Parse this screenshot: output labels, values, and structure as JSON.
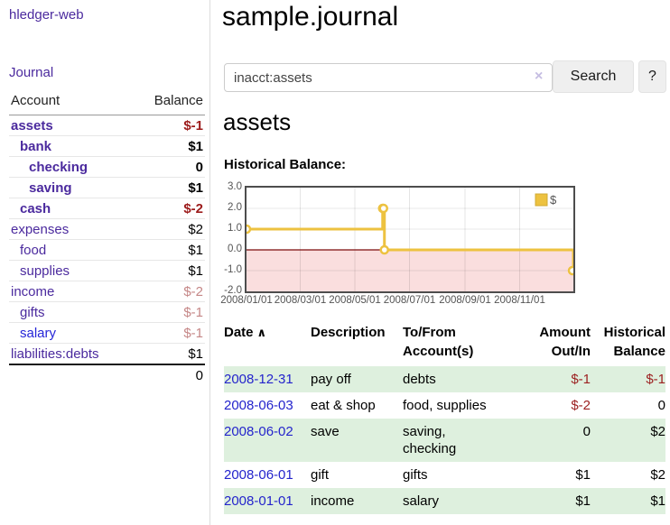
{
  "app": {
    "brand": "hledger-web",
    "nav": {
      "journal": "Journal"
    }
  },
  "sidebar": {
    "header": {
      "account": "Account",
      "balance": "Balance"
    },
    "accounts": [
      {
        "name": "assets",
        "balance": "$-1",
        "level": 0,
        "bold": true,
        "neg": "strong",
        "link": "purple"
      },
      {
        "name": "bank",
        "balance": "$1",
        "level": 1,
        "bold": true,
        "neg": null,
        "link": "purple"
      },
      {
        "name": "checking",
        "balance": "0",
        "level": 2,
        "bold": true,
        "neg": null,
        "link": "purple"
      },
      {
        "name": "saving",
        "balance": "$1",
        "level": 2,
        "bold": true,
        "neg": null,
        "link": "purple"
      },
      {
        "name": "cash",
        "balance": "$-2",
        "level": 1,
        "bold": true,
        "neg": "strong",
        "link": "purple"
      },
      {
        "name": "expenses",
        "balance": "$2",
        "level": 0,
        "bold": false,
        "neg": null,
        "link": "purple"
      },
      {
        "name": "food",
        "balance": "$1",
        "level": 1,
        "bold": false,
        "neg": null,
        "link": "purple"
      },
      {
        "name": "supplies",
        "balance": "$1",
        "level": 1,
        "bold": false,
        "neg": null,
        "link": "purple"
      },
      {
        "name": "income",
        "balance": "$-2",
        "level": 0,
        "bold": false,
        "neg": "soft",
        "link": "purple"
      },
      {
        "name": "gifts",
        "balance": "$-1",
        "level": 1,
        "bold": false,
        "neg": "soft",
        "link": "purple"
      },
      {
        "name": "salary",
        "balance": "$-1",
        "level": 1,
        "bold": false,
        "neg": "soft",
        "link": "blue"
      },
      {
        "name": "liabilities:debts",
        "balance": "$1",
        "level": 0,
        "bold": false,
        "neg": null,
        "link": "purple"
      }
    ],
    "total": "0"
  },
  "main": {
    "title": "sample.journal",
    "search": {
      "value": "inacct:assets",
      "clear_icon": "×",
      "search_button": "Search",
      "help_button": "?"
    },
    "section_heading": "assets",
    "chart_title": "Historical Balance:"
  },
  "chart_data": {
    "type": "line",
    "step": true,
    "title": "Historical Balance",
    "series": [
      {
        "name": "$",
        "color": "#edc240",
        "points": [
          [
            "2008-01-01",
            1
          ],
          [
            "2008-06-01",
            2
          ],
          [
            "2008-06-02",
            2
          ],
          [
            "2008-06-03",
            0
          ],
          [
            "2008-12-31",
            -1
          ]
        ]
      }
    ],
    "x_ticks": [
      "2008/01/01",
      "2008/03/01",
      "2008/05/01",
      "2008/07/01",
      "2008/09/01",
      "2008/11/01"
    ],
    "y_ticks": [
      "3.0",
      "2.0",
      "1.0",
      "0.0",
      "-1.0",
      "-2.0"
    ],
    "xlim": [
      "2008-01-01",
      "2008-12-31"
    ],
    "ylim": [
      -2,
      3
    ],
    "grid": true,
    "legend": {
      "label": "$",
      "position": "top-right"
    },
    "negative_region_color": "#fadede",
    "zero_line_color": "#7c0b0b",
    "marker": {
      "fill": "#ffffff",
      "stroke": "#edc240"
    }
  },
  "register": {
    "columns": {
      "date": "Date",
      "description": "Description",
      "account": "To/From\nAccount(s)",
      "amount": "Amount\nOut/In",
      "balance": "Historical\nBalance"
    },
    "sort_icon": "∧",
    "rows": [
      {
        "date": "2008-12-31",
        "description": "pay off",
        "accounts": "debts",
        "amount": "$-1",
        "amount_neg": true,
        "balance": "$-1",
        "balance_neg": true
      },
      {
        "date": "2008-06-03",
        "description": "eat & shop",
        "accounts": "food, supplies",
        "amount": "$-2",
        "amount_neg": true,
        "balance": "0",
        "balance_neg": false
      },
      {
        "date": "2008-06-02",
        "description": "save",
        "accounts": "saving,\nchecking",
        "amount": "0",
        "amount_neg": false,
        "balance": "$2",
        "balance_neg": false
      },
      {
        "date": "2008-06-01",
        "description": "gift",
        "accounts": "gifts",
        "amount": "$1",
        "amount_neg": false,
        "balance": "$2",
        "balance_neg": false
      },
      {
        "date": "2008-01-01",
        "description": "income",
        "accounts": "salary",
        "amount": "$1",
        "amount_neg": false,
        "balance": "$1",
        "balance_neg": false
      }
    ]
  }
}
